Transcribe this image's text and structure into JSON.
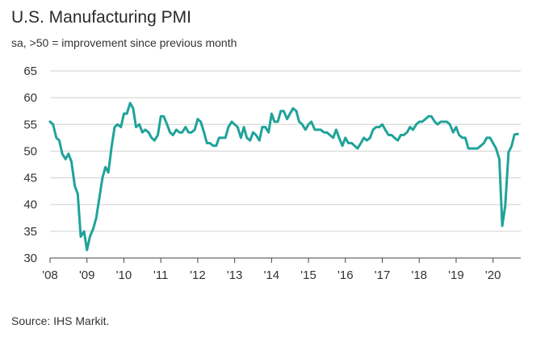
{
  "chart_data": {
    "type": "line",
    "title": "U.S. Manufacturing PMI",
    "subtitle": "sa, >50 = improvement since previous month",
    "source": "Source: IHS Markit.",
    "xlabel": "",
    "ylabel": "",
    "ylim": [
      30,
      65
    ],
    "xlim": [
      2008.0,
      2020.75
    ],
    "yticks": [
      30,
      35,
      40,
      45,
      50,
      55,
      60,
      65
    ],
    "xticks": [
      {
        "value": 2008,
        "label": "'08"
      },
      {
        "value": 2009,
        "label": "'09"
      },
      {
        "value": 2010,
        "label": "'10"
      },
      {
        "value": 2011,
        "label": "'11"
      },
      {
        "value": 2012,
        "label": "'12"
      },
      {
        "value": 2013,
        "label": "'13"
      },
      {
        "value": 2014,
        "label": "'14"
      },
      {
        "value": 2015,
        "label": "'15"
      },
      {
        "value": 2016,
        "label": "'16"
      },
      {
        "value": 2017,
        "label": "'17"
      },
      {
        "value": 2018,
        "label": "'18"
      },
      {
        "value": 2019,
        "label": "'19"
      },
      {
        "value": 2020,
        "label": "'20"
      }
    ],
    "grid": "horizontal",
    "line_color": "#1fa39a",
    "series": [
      {
        "x": [
          2008.0,
          2008.08,
          2008.17,
          2008.25,
          2008.33,
          2008.42,
          2008.5,
          2008.58,
          2008.67,
          2008.75,
          2008.83,
          2008.92,
          2009.0,
          2009.08,
          2009.17,
          2009.25,
          2009.33,
          2009.42,
          2009.5,
          2009.58,
          2009.67,
          2009.75,
          2009.83,
          2009.92,
          2010.0,
          2010.08,
          2010.17,
          2010.25,
          2010.33,
          2010.42,
          2010.5,
          2010.58,
          2010.67,
          2010.75,
          2010.83,
          2010.92,
          2011.0,
          2011.08,
          2011.17,
          2011.25,
          2011.33,
          2011.42,
          2011.5,
          2011.58,
          2011.67,
          2011.75,
          2011.83,
          2011.92,
          2012.0,
          2012.08,
          2012.17,
          2012.25,
          2012.33,
          2012.42,
          2012.5,
          2012.58,
          2012.67,
          2012.75,
          2012.83,
          2012.92,
          2013.0,
          2013.08,
          2013.17,
          2013.25,
          2013.33,
          2013.42,
          2013.5,
          2013.58,
          2013.67,
          2013.75,
          2013.83,
          2013.92,
          2014.0,
          2014.08,
          2014.17,
          2014.25,
          2014.33,
          2014.42,
          2014.5,
          2014.58,
          2014.67,
          2014.75,
          2014.83,
          2014.92,
          2015.0,
          2015.08,
          2015.17,
          2015.25,
          2015.33,
          2015.42,
          2015.5,
          2015.58,
          2015.67,
          2015.75,
          2015.83,
          2015.92,
          2016.0,
          2016.08,
          2016.17,
          2016.25,
          2016.33,
          2016.42,
          2016.5,
          2016.58,
          2016.67,
          2016.75,
          2016.83,
          2016.92,
          2017.0,
          2017.08,
          2017.17,
          2017.25,
          2017.33,
          2017.42,
          2017.5,
          2017.58,
          2017.67,
          2017.75,
          2017.83,
          2017.92,
          2018.0,
          2018.08,
          2018.17,
          2018.25,
          2018.33,
          2018.42,
          2018.5,
          2018.58,
          2018.67,
          2018.75,
          2018.83,
          2018.92,
          2019.0,
          2019.08,
          2019.17,
          2019.25,
          2019.33,
          2019.42,
          2019.5,
          2019.58,
          2019.67,
          2019.75,
          2019.83,
          2019.92,
          2020.0,
          2020.08,
          2020.17,
          2020.25,
          2020.33,
          2020.42,
          2020.5,
          2020.58,
          2020.67
        ],
        "values": [
          55.5,
          55.0,
          52.5,
          52.0,
          49.5,
          48.5,
          49.5,
          48.0,
          43.5,
          42.0,
          34.0,
          35.0,
          31.5,
          34.0,
          35.5,
          37.5,
          41.0,
          45.0,
          47.0,
          46.0,
          51.0,
          54.5,
          55.0,
          54.5,
          57.0,
          57.0,
          59.0,
          58.0,
          54.5,
          55.0,
          53.5,
          54.0,
          53.5,
          52.5,
          52.0,
          53.0,
          56.5,
          56.5,
          55.0,
          53.5,
          53.0,
          54.0,
          53.5,
          53.5,
          54.5,
          53.5,
          53.5,
          54.0,
          56.0,
          55.5,
          53.5,
          51.5,
          51.5,
          51.0,
          51.0,
          52.5,
          52.5,
          52.5,
          54.5,
          55.5,
          55.0,
          54.5,
          52.5,
          54.5,
          52.5,
          52.0,
          53.5,
          53.0,
          52.0,
          54.5,
          54.5,
          53.5,
          57.0,
          55.5,
          55.5,
          57.5,
          57.5,
          56.0,
          57.0,
          58.0,
          57.5,
          55.5,
          55.0,
          54.0,
          55.0,
          55.5,
          54.0,
          54.0,
          54.0,
          53.5,
          53.5,
          53.0,
          52.5,
          54.0,
          52.5,
          51.0,
          52.5,
          51.5,
          51.5,
          51.0,
          50.5,
          51.5,
          52.5,
          52.0,
          52.5,
          54.0,
          54.5,
          54.5,
          55.0,
          54.0,
          53.0,
          53.0,
          52.5,
          52.0,
          53.0,
          53.0,
          53.5,
          54.5,
          54.0,
          55.0,
          55.5,
          55.5,
          56.0,
          56.5,
          56.5,
          55.5,
          55.0,
          55.5,
          55.5,
          55.5,
          55.0,
          53.5,
          54.5,
          53.0,
          52.5,
          52.5,
          50.5,
          50.5,
          50.5,
          50.5,
          51.0,
          51.5,
          52.5,
          52.5,
          51.5,
          50.5,
          48.5,
          36.0,
          39.8,
          49.8,
          50.9,
          53.1,
          53.2
        ]
      }
    ]
  }
}
